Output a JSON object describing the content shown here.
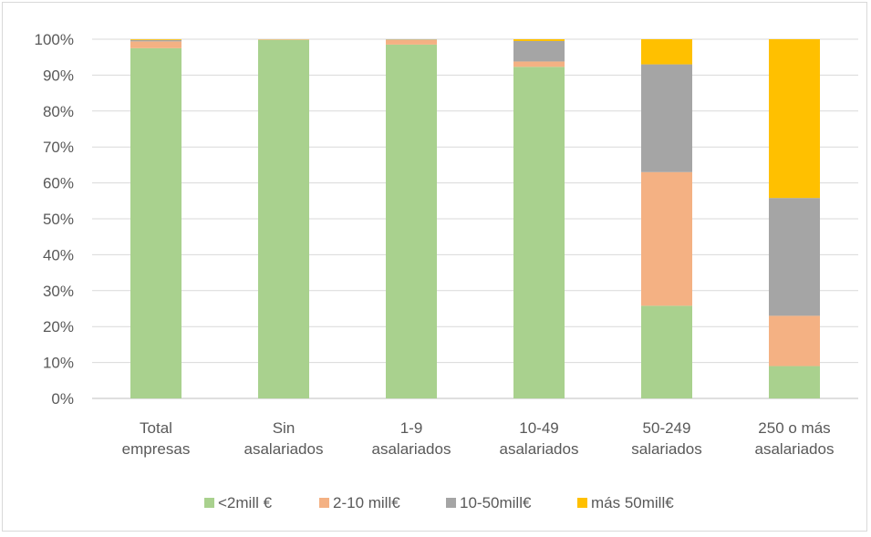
{
  "chart_data": {
    "type": "bar",
    "stacked": true,
    "categories": [
      [
        "Total",
        "empresas"
      ],
      [
        "Sin",
        "asalariados"
      ],
      [
        "1-9",
        "asalariados"
      ],
      [
        "10-49",
        "asalariados"
      ],
      [
        "50-249",
        "salariados"
      ],
      [
        "250 o más",
        "asalariados"
      ]
    ],
    "series": [
      {
        "name": "<2mill €",
        "color": "#a9d18e",
        "values": [
          97.5,
          99.8,
          98.5,
          92.3,
          25.8,
          9.0
        ]
      },
      {
        "name": "2-10 mill€",
        "color": "#f4b183",
        "values": [
          1.9,
          0.1,
          1.3,
          1.5,
          37.2,
          14.0
        ]
      },
      {
        "name": "10-50mill€",
        "color": "#a5a5a5",
        "values": [
          0.4,
          0.05,
          0.15,
          5.7,
          30.0,
          32.8
        ]
      },
      {
        "name": "más 50mill€",
        "color": "#ffc000",
        "values": [
          0.2,
          0.05,
          0.05,
          0.5,
          7.0,
          44.2
        ]
      }
    ],
    "ylim": [
      0,
      100
    ],
    "yticks": [
      "0%",
      "10%",
      "20%",
      "30%",
      "40%",
      "50%",
      "60%",
      "70%",
      "80%",
      "90%",
      "100%"
    ],
    "title": "",
    "xlabel": "",
    "ylabel": "",
    "grid": true,
    "legend_position": "bottom"
  }
}
